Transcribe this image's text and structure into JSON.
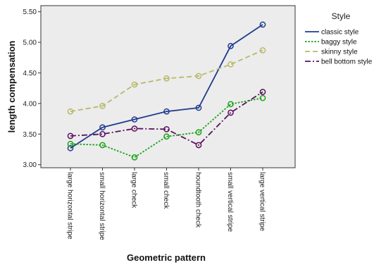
{
  "chart_data": {
    "type": "line",
    "title": "",
    "xlabel": "Geometric pattern",
    "ylabel": "length compensation",
    "categories": [
      "large horizontal stripe",
      "small horizontal stripe",
      "large check",
      "small check",
      "houndtooth check",
      "small vertical stripe",
      "large vertical stripe"
    ],
    "yticks": [
      "3.00",
      "3.50",
      "4.00",
      "4.50",
      "5.00",
      "5.50"
    ],
    "ylim": [
      2.95,
      5.6
    ],
    "grid": false,
    "legend_title": "Style",
    "legend_position": "right",
    "series": [
      {
        "name": "classic style",
        "color": "#1f3b8f",
        "dash": "solid",
        "values": [
          3.27,
          3.61,
          3.74,
          3.87,
          3.93,
          4.94,
          5.29
        ]
      },
      {
        "name": "baggy style",
        "color": "#1aa31a",
        "dash": "dotted",
        "values": [
          3.34,
          3.32,
          3.12,
          3.46,
          3.53,
          3.99,
          4.09
        ]
      },
      {
        "name": "skinny style",
        "color": "#b8b86a",
        "dash": "dashed",
        "values": [
          3.87,
          3.96,
          4.31,
          4.41,
          4.45,
          4.64,
          4.87
        ]
      },
      {
        "name": "bell bottom style",
        "color": "#5a1060",
        "dash": "dashdot",
        "values": [
          3.47,
          3.5,
          3.59,
          3.58,
          3.32,
          3.85,
          4.19
        ]
      }
    ]
  }
}
